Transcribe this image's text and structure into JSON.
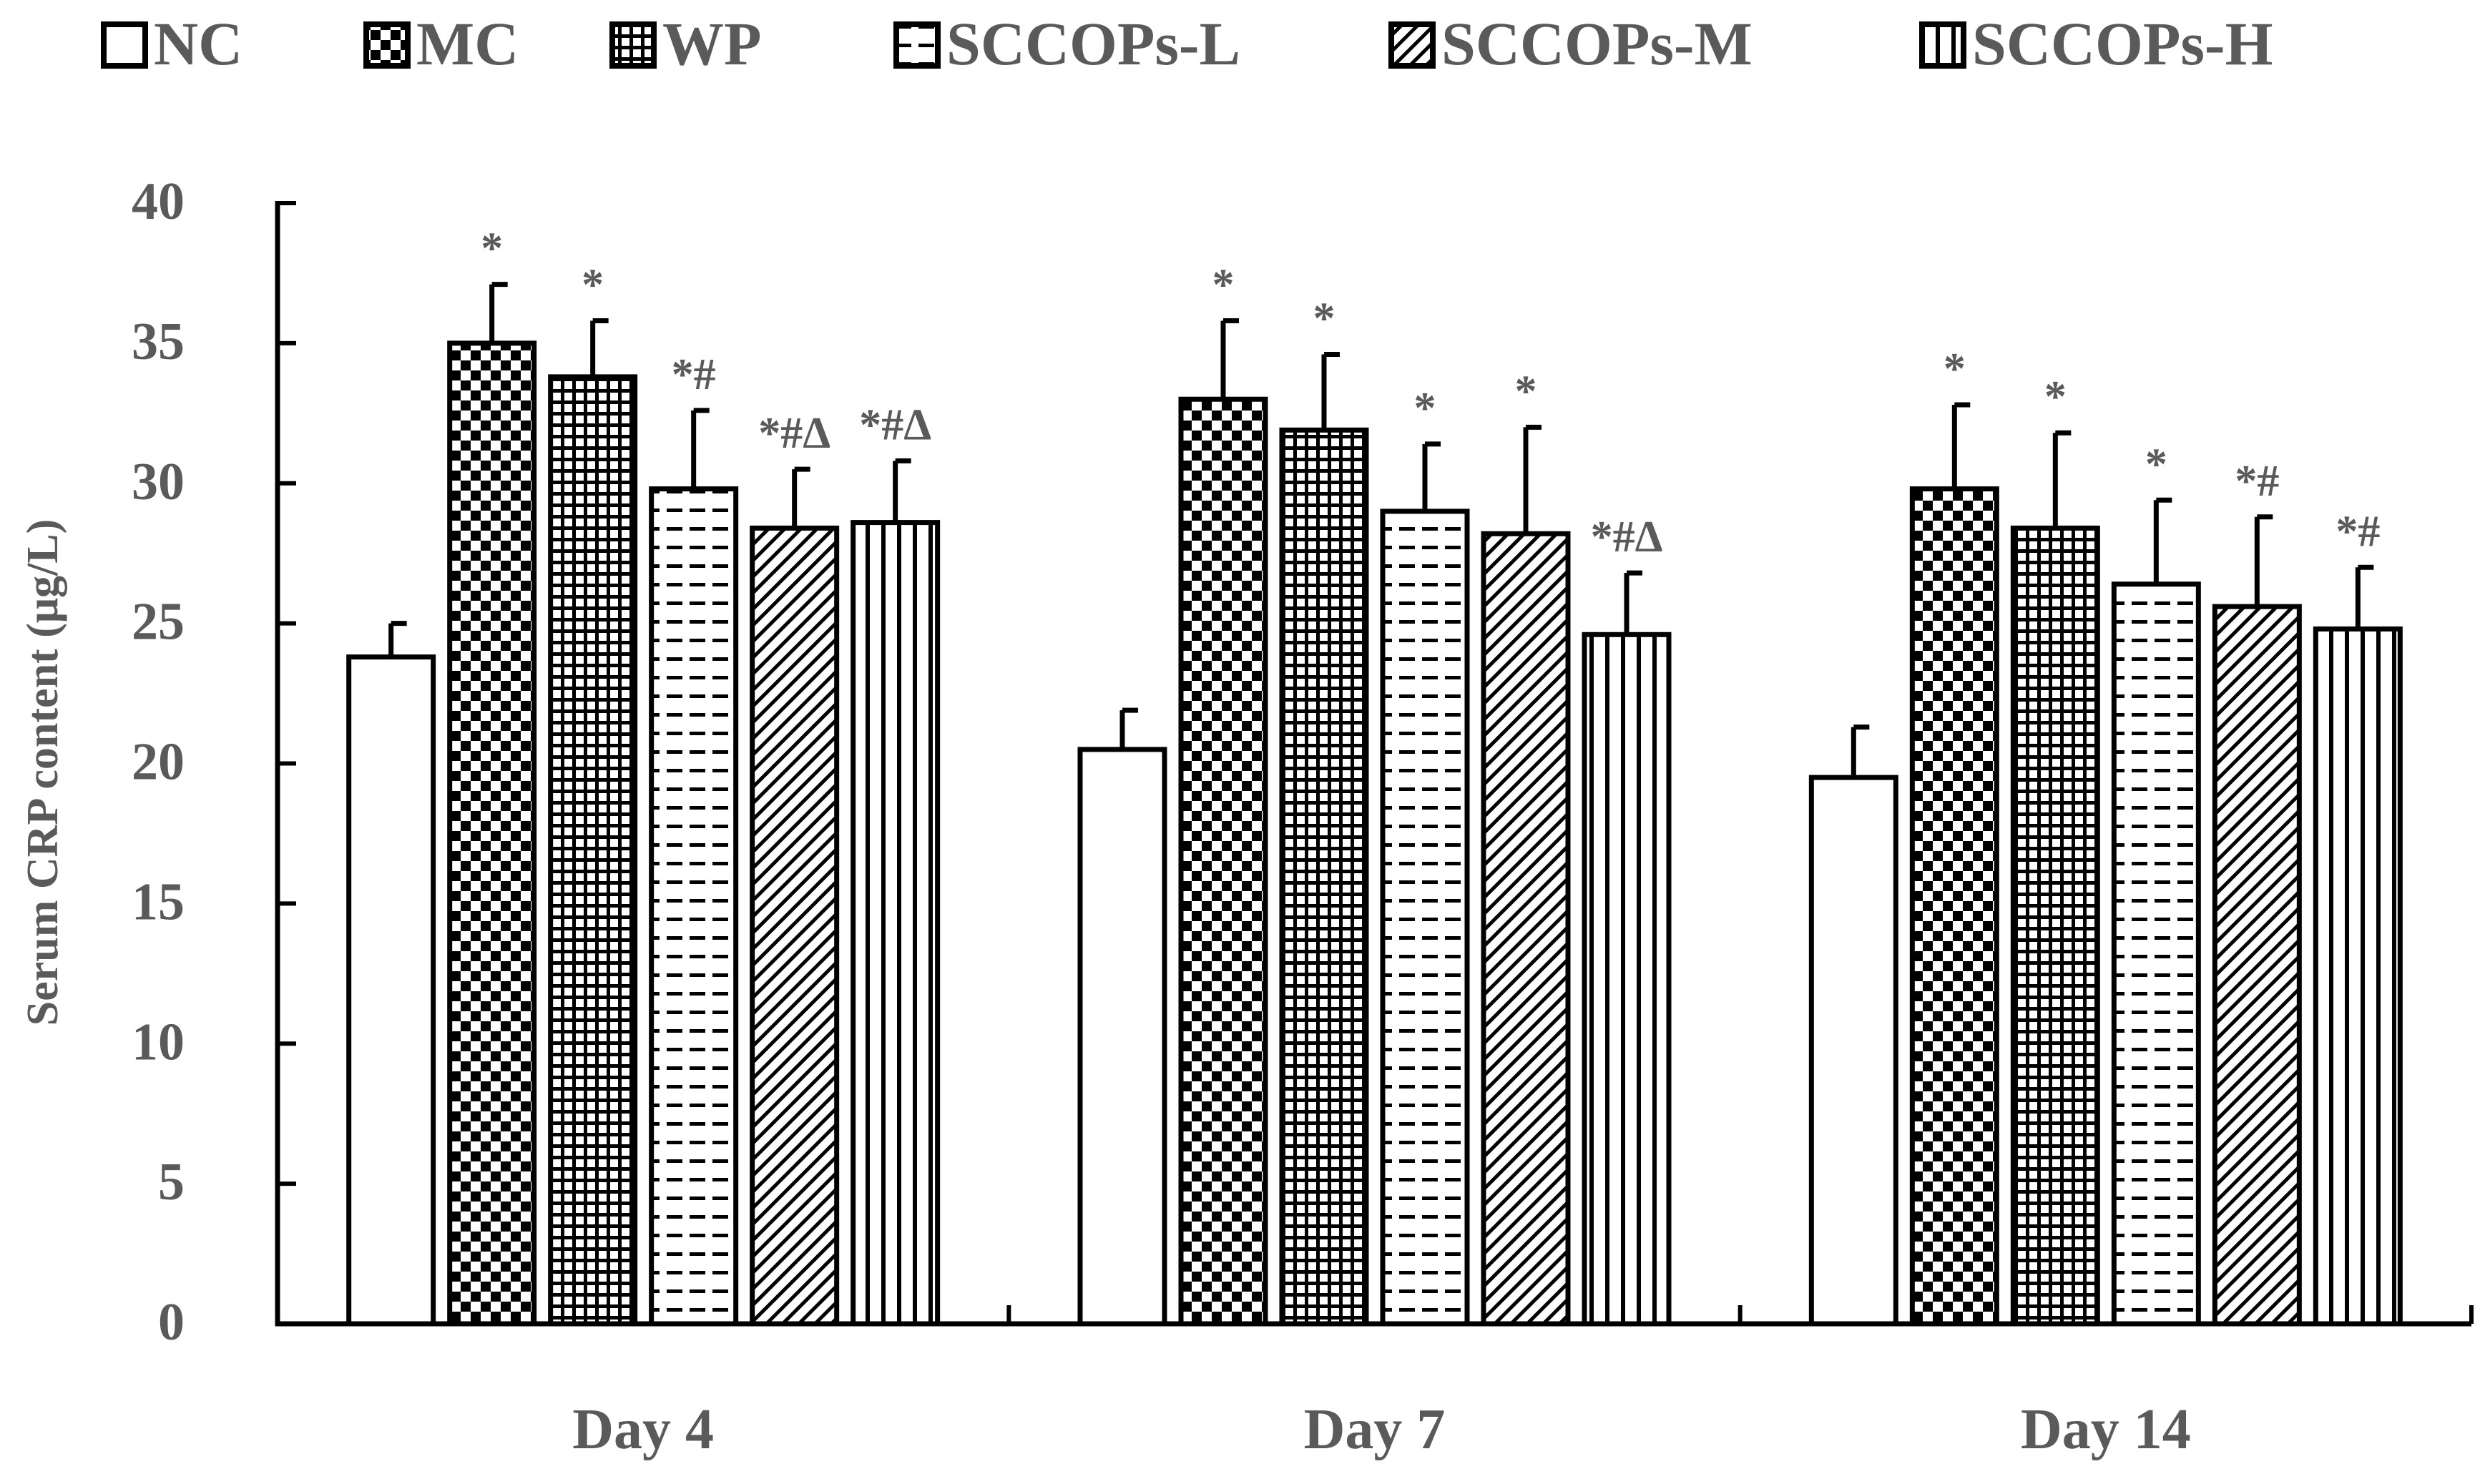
{
  "chart_data": {
    "type": "bar",
    "title": "",
    "xlabel": "",
    "ylabel": "Serum CRP content (μg/L)",
    "ylim": [
      0,
      40
    ],
    "yticks": [
      0,
      5,
      10,
      15,
      20,
      25,
      30,
      35,
      40
    ],
    "grid": false,
    "legend_position": "top",
    "categories": [
      "Day 4",
      "Day 7",
      "Day 14"
    ],
    "series": [
      {
        "name": "NC",
        "pattern": "open",
        "values": [
          23.8,
          20.5,
          19.5
        ],
        "errors": [
          1.2,
          1.4,
          1.8
        ],
        "annotations": [
          "",
          "",
          ""
        ]
      },
      {
        "name": "MC",
        "pattern": "checker",
        "values": [
          35.0,
          33.0,
          29.8
        ],
        "errors": [
          2.1,
          2.8,
          3.0
        ],
        "annotations": [
          "*",
          "*",
          "*"
        ]
      },
      {
        "name": "WP",
        "pattern": "grid",
        "values": [
          33.8,
          31.9,
          28.4
        ],
        "errors": [
          2.0,
          2.7,
          3.4
        ],
        "annotations": [
          "*",
          "*",
          "*"
        ]
      },
      {
        "name": "SCCOPs-L",
        "pattern": "dashes",
        "values": [
          29.8,
          29.0,
          26.4
        ],
        "errors": [
          2.8,
          2.4,
          3.0
        ],
        "annotations": [
          "*#",
          "*",
          "*"
        ]
      },
      {
        "name": "SCCOPs-M",
        "pattern": "diagonal",
        "values": [
          28.4,
          28.2,
          25.6
        ],
        "errors": [
          2.1,
          3.8,
          3.2
        ],
        "annotations": [
          "*#Δ",
          "*",
          "*#"
        ]
      },
      {
        "name": "SCCOPs-H",
        "pattern": "vertical",
        "values": [
          28.6,
          24.6,
          24.8
        ],
        "errors": [
          2.2,
          2.2,
          2.2
        ],
        "annotations": [
          "*#Δ",
          "*#Δ",
          "*#"
        ]
      }
    ],
    "colors": {
      "text": "#5a5a5a",
      "axis": "#000000",
      "bar_fill": "#ffffff",
      "bar_stroke": "#000000"
    }
  }
}
